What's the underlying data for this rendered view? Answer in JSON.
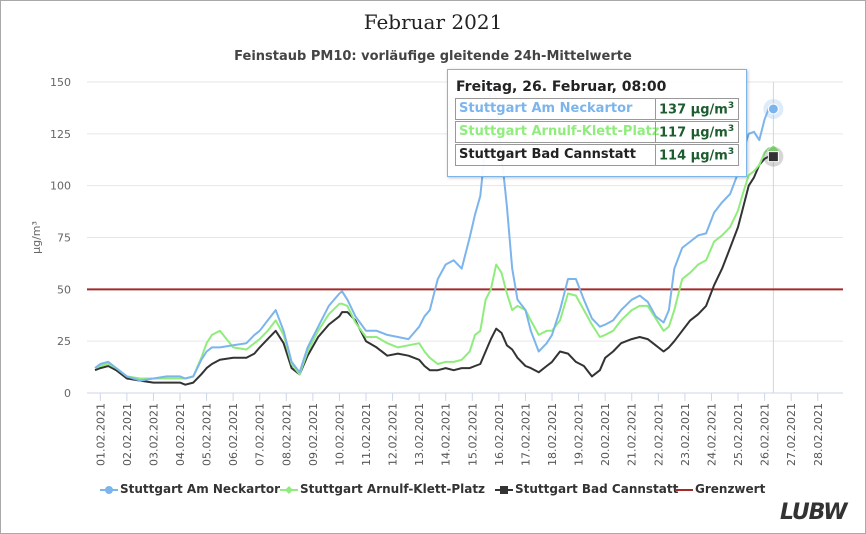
{
  "page_title": "Februar 2021",
  "tooltip": {
    "header": "Freitag, 26. Februar, 08:00",
    "rows": [
      {
        "name": "Stuttgart Am Neckartor",
        "value": "137 µg/m",
        "sup": "3",
        "color": "#7cb5ec"
      },
      {
        "name": "Stuttgart Arnulf-Klett-Platz",
        "value": "117 µg/m",
        "sup": "3",
        "color": "#90ed7d"
      },
      {
        "name": "Stuttgart Bad Cannstatt",
        "value": "114 µg/m",
        "sup": "3",
        "color": "#222222"
      }
    ]
  },
  "legend": [
    {
      "label": "Stuttgart Am Neckartor",
      "color": "#7cb5ec",
      "marker": "circle"
    },
    {
      "label": "Stuttgart Arnulf-Klett-Platz",
      "color": "#90ed7d",
      "marker": "diamond"
    },
    {
      "label": "Stuttgart Bad Cannstatt",
      "color": "#333333",
      "marker": "square"
    },
    {
      "label": "Grenzwert",
      "color": "#a52a2a",
      "marker": "line"
    }
  ],
  "logo": "LUBW",
  "chart_data": {
    "type": "line",
    "title": "Feinstaub PM10: vorläufige gleitende 24h-Mittelwerte",
    "xlabel": "",
    "ylabel": "µg/m³",
    "ylim": [
      0,
      150
    ],
    "yticks": [
      0,
      25,
      50,
      75,
      100,
      125,
      150
    ],
    "xticks": [
      "01.02.2021",
      "02.02.2021",
      "03.02.2021",
      "04.02.2021",
      "05.02.2021",
      "06.02.2021",
      "07.02.2021",
      "08.02.2021",
      "09.02.2021",
      "10.02.2021",
      "11.02.2021",
      "12.02.2021",
      "13.02.2021",
      "14.02.2021",
      "15.02.2021",
      "16.02.2021",
      "17.02.2021",
      "18.02.2021",
      "19.02.2021",
      "20.02.2021",
      "21.02.2021",
      "22.02.2021",
      "23.02.2021",
      "24.02.2021",
      "25.02.2021",
      "26.02.2021",
      "27.02.2021",
      "28.02.2021"
    ],
    "x_unit": "day of February (1 = 01.02.2021 00:00)",
    "grid": true,
    "threshold": {
      "name": "Grenzwert",
      "value": 50,
      "color": "#a52a2a"
    },
    "crosshair_x": 26.33,
    "series": [
      {
        "name": "Stuttgart Am Neckartor",
        "color": "#7cb5ec",
        "x": [
          0.8,
          1,
          1.3,
          1.6,
          2,
          2.5,
          3,
          3.5,
          4,
          4.2,
          4.5,
          4.8,
          5,
          5.2,
          5.5,
          6,
          6.5,
          6.8,
          7,
          7.3,
          7.6,
          7.9,
          8.2,
          8.5,
          8.8,
          9.2,
          9.6,
          10,
          10.1,
          10.3,
          10.6,
          11,
          11.4,
          11.8,
          12.2,
          12.6,
          13,
          13.2,
          13.4,
          13.7,
          14,
          14.3,
          14.6,
          14.9,
          15.1,
          15.3,
          15.5,
          15.7,
          15.9,
          16.1,
          16.3,
          16.5,
          16.7,
          17,
          17.2,
          17.5,
          17.8,
          18,
          18.3,
          18.6,
          18.9,
          19.2,
          19.5,
          19.8,
          20,
          20.3,
          20.6,
          21,
          21.3,
          21.6,
          21.9,
          22.2,
          22.4,
          22.6,
          22.9,
          23.2,
          23.5,
          23.8,
          24.1,
          24.4,
          24.7,
          25,
          25.2,
          25.4,
          25.6,
          25.8,
          26,
          26.15,
          26.33
        ],
        "y": [
          12,
          14,
          15,
          12,
          8,
          6,
          7,
          8,
          8,
          7,
          8,
          16,
          20,
          22,
          22,
          23,
          24,
          28,
          30,
          35,
          40,
          30,
          15,
          10,
          22,
          32,
          42,
          48,
          49,
          45,
          37,
          30,
          30,
          28,
          27,
          26,
          32,
          37,
          40,
          55,
          62,
          64,
          60,
          75,
          86,
          95,
          120,
          148,
          142,
          115,
          90,
          60,
          45,
          40,
          30,
          20,
          24,
          28,
          40,
          55,
          55,
          45,
          36,
          32,
          33,
          35,
          40,
          45,
          47,
          44,
          37,
          34,
          40,
          60,
          70,
          73,
          76,
          77,
          87,
          92,
          96,
          106,
          117,
          125,
          126,
          122,
          132,
          137,
          137
        ]
      },
      {
        "name": "Stuttgart Arnulf-Klett-Platz",
        "color": "#90ed7d",
        "x": [
          0.8,
          1,
          1.3,
          1.6,
          2,
          2.5,
          3,
          3.5,
          4,
          4.2,
          4.5,
          4.8,
          5,
          5.2,
          5.5,
          6,
          6.5,
          6.8,
          7,
          7.3,
          7.6,
          7.9,
          8.2,
          8.5,
          8.8,
          9.2,
          9.6,
          10,
          10.1,
          10.3,
          10.6,
          11,
          11.4,
          11.8,
          12.2,
          12.6,
          13,
          13.2,
          13.4,
          13.7,
          14,
          14.3,
          14.6,
          14.9,
          15.1,
          15.3,
          15.5,
          15.7,
          15.9,
          16.1,
          16.3,
          16.5,
          16.7,
          17,
          17.2,
          17.5,
          17.8,
          18,
          18.3,
          18.6,
          18.9,
          19.2,
          19.5,
          19.8,
          20,
          20.3,
          20.6,
          21,
          21.3,
          21.6,
          21.9,
          22.2,
          22.4,
          22.6,
          22.9,
          23.2,
          23.5,
          23.8,
          24.1,
          24.4,
          24.7,
          25,
          25.2,
          25.4,
          25.6,
          25.8,
          26,
          26.15,
          26.33
        ],
        "y": [
          12,
          13,
          14,
          12,
          8,
          7,
          7,
          7,
          7,
          7,
          8,
          17,
          24,
          28,
          30,
          22,
          21,
          24,
          26,
          30,
          35,
          28,
          14,
          9,
          20,
          30,
          38,
          43,
          43,
          42,
          34,
          27,
          27,
          24,
          22,
          23,
          24,
          20,
          17,
          14,
          15,
          15,
          16,
          20,
          28,
          30,
          45,
          50,
          62,
          58,
          48,
          40,
          42,
          40,
          35,
          28,
          30,
          30,
          35,
          48,
          47,
          40,
          33,
          27,
          28,
          30,
          35,
          40,
          42,
          42,
          36,
          30,
          32,
          40,
          55,
          58,
          62,
          64,
          73,
          76,
          80,
          88,
          97,
          105,
          107,
          110,
          116,
          118,
          117
        ]
      },
      {
        "name": "Stuttgart Bad Cannstatt",
        "color": "#333333",
        "x": [
          0.8,
          1,
          1.3,
          1.6,
          2,
          2.5,
          3,
          3.5,
          4,
          4.2,
          4.5,
          4.8,
          5,
          5.2,
          5.5,
          6,
          6.5,
          6.8,
          7,
          7.3,
          7.6,
          7.9,
          8.2,
          8.5,
          8.8,
          9.2,
          9.6,
          10,
          10.1,
          10.3,
          10.6,
          11,
          11.4,
          11.8,
          12.2,
          12.6,
          13,
          13.2,
          13.4,
          13.7,
          14,
          14.3,
          14.6,
          14.9,
          15.1,
          15.3,
          15.5,
          15.7,
          15.9,
          16.1,
          16.3,
          16.5,
          16.7,
          17,
          17.2,
          17.5,
          17.8,
          18,
          18.3,
          18.6,
          18.9,
          19.2,
          19.5,
          19.8,
          20,
          20.3,
          20.6,
          21,
          21.3,
          21.6,
          21.9,
          22.2,
          22.4,
          22.6,
          22.9,
          23.2,
          23.5,
          23.8,
          24.1,
          24.4,
          24.7,
          25,
          25.2,
          25.4,
          25.6,
          25.8,
          26,
          26.15,
          26.33
        ],
        "y": [
          11,
          12,
          13,
          11,
          7,
          6,
          5,
          5,
          5,
          4,
          5,
          9,
          12,
          14,
          16,
          17,
          17,
          19,
          22,
          26,
          30,
          24,
          12,
          9,
          18,
          27,
          33,
          37,
          39,
          39,
          35,
          25,
          22,
          18,
          19,
          18,
          16,
          13,
          11,
          11,
          12,
          11,
          12,
          12,
          13,
          14,
          20,
          26,
          31,
          29,
          23,
          21,
          17,
          13,
          12,
          10,
          13,
          15,
          20,
          19,
          15,
          13,
          8,
          11,
          17,
          20,
          24,
          26,
          27,
          26,
          23,
          20,
          22,
          25,
          30,
          35,
          38,
          42,
          52,
          60,
          70,
          80,
          90,
          100,
          104,
          110,
          113,
          114,
          114
        ]
      }
    ]
  }
}
